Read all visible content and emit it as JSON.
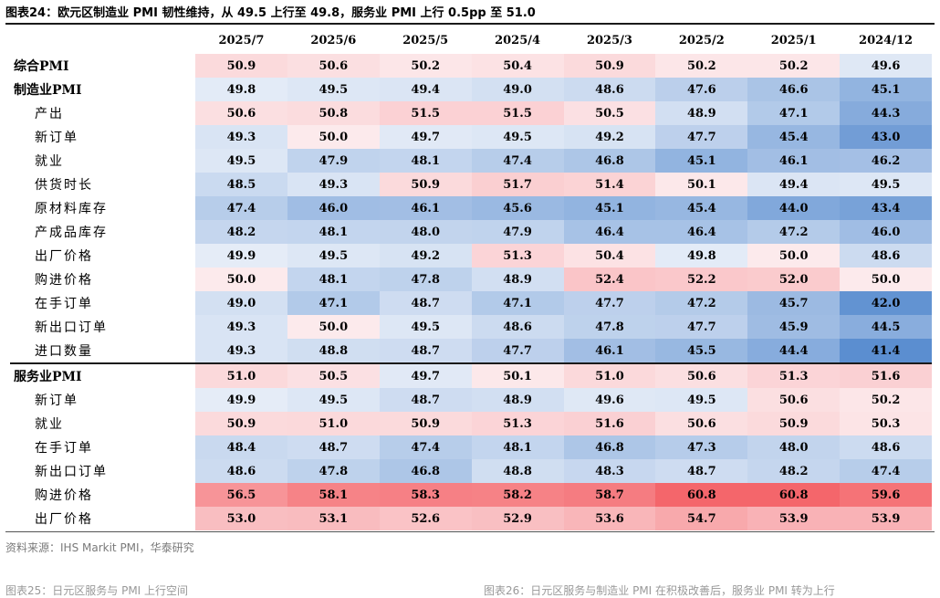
{
  "title": "图表24：欧元区制造业 PMI 韧性维持，从 49.5 上行至 49.8，服务业 PMI 上行 0.5pp 至 51.0",
  "columns": [
    "2025/7",
    "2025/6",
    "2025/5",
    "2025/4",
    "2025/3",
    "2025/2",
    "2025/1",
    "2024/12"
  ],
  "rows": [
    {
      "label": "综合PMI",
      "level": "main",
      "values": [
        "50.9",
        "50.6",
        "50.2",
        "50.4",
        "50.9",
        "50.2",
        "50.2",
        "49.6"
      ]
    },
    {
      "label": "制造业PMI",
      "level": "main",
      "values": [
        "49.8",
        "49.5",
        "49.4",
        "49.0",
        "48.6",
        "47.6",
        "46.6",
        "45.1"
      ]
    },
    {
      "label": "产出",
      "level": "sub",
      "values": [
        "50.6",
        "50.8",
        "51.5",
        "51.5",
        "50.5",
        "48.9",
        "47.1",
        "44.3"
      ]
    },
    {
      "label": "新订单",
      "level": "sub",
      "values": [
        "49.3",
        "50.0",
        "49.7",
        "49.5",
        "49.2",
        "47.7",
        "45.4",
        "43.0"
      ]
    },
    {
      "label": "就业",
      "level": "sub",
      "values": [
        "49.5",
        "47.9",
        "48.1",
        "47.4",
        "46.8",
        "45.1",
        "46.1",
        "46.2"
      ]
    },
    {
      "label": "供货时长",
      "level": "sub",
      "values": [
        "48.5",
        "49.3",
        "50.9",
        "51.7",
        "51.4",
        "50.1",
        "49.4",
        "49.5"
      ]
    },
    {
      "label": "原材料库存",
      "level": "sub",
      "values": [
        "47.4",
        "46.0",
        "46.1",
        "45.6",
        "45.1",
        "45.4",
        "44.0",
        "43.4"
      ]
    },
    {
      "label": "产成品库存",
      "level": "sub",
      "values": [
        "48.2",
        "48.1",
        "48.0",
        "47.9",
        "46.4",
        "46.4",
        "47.2",
        "46.0"
      ]
    },
    {
      "label": "出厂价格",
      "level": "sub",
      "values": [
        "49.9",
        "49.5",
        "49.2",
        "51.3",
        "50.4",
        "49.8",
        "50.0",
        "48.6"
      ]
    },
    {
      "label": "购进价格",
      "level": "sub",
      "values": [
        "50.0",
        "48.1",
        "47.8",
        "48.9",
        "52.4",
        "52.2",
        "52.0",
        "50.0"
      ]
    },
    {
      "label": "在手订单",
      "level": "sub",
      "values": [
        "49.0",
        "47.1",
        "48.7",
        "47.1",
        "47.7",
        "47.2",
        "45.7",
        "42.0"
      ]
    },
    {
      "label": "新出口订单",
      "level": "sub",
      "values": [
        "49.3",
        "50.0",
        "49.5",
        "48.6",
        "47.8",
        "47.7",
        "45.9",
        "44.5"
      ]
    },
    {
      "label": "进口数量",
      "level": "sub",
      "values": [
        "49.3",
        "48.8",
        "48.7",
        "47.7",
        "46.1",
        "45.5",
        "44.4",
        "41.4"
      ]
    },
    {
      "label": "服务业PMI",
      "level": "main",
      "sep": true,
      "values": [
        "51.0",
        "50.5",
        "49.7",
        "50.1",
        "51.0",
        "50.6",
        "51.3",
        "51.6"
      ]
    },
    {
      "label": "新订单",
      "level": "sub",
      "values": [
        "49.9",
        "49.5",
        "48.7",
        "48.9",
        "49.6",
        "49.5",
        "50.6",
        "50.2"
      ]
    },
    {
      "label": "就业",
      "level": "sub",
      "values": [
        "50.9",
        "51.0",
        "50.9",
        "51.3",
        "51.6",
        "50.6",
        "50.9",
        "50.3"
      ]
    },
    {
      "label": "在手订单",
      "level": "sub",
      "values": [
        "48.4",
        "48.7",
        "47.4",
        "48.1",
        "46.8",
        "47.3",
        "48.0",
        "48.6"
      ]
    },
    {
      "label": "新出口订单",
      "level": "sub",
      "values": [
        "48.6",
        "47.8",
        "46.8",
        "48.8",
        "48.3",
        "48.7",
        "48.2",
        "47.4"
      ]
    },
    {
      "label": "购进价格",
      "level": "sub",
      "values": [
        "56.5",
        "58.1",
        "58.3",
        "58.2",
        "58.7",
        "60.8",
        "60.8",
        "59.6"
      ]
    },
    {
      "label": "出厂价格",
      "level": "sub",
      "values": [
        "53.0",
        "53.1",
        "52.6",
        "52.9",
        "53.6",
        "54.7",
        "53.9",
        "53.9"
      ]
    }
  ],
  "heatmap_colors": {
    "low": "#5b8ed0",
    "mid": "#e8eef8",
    "high": "#f4666b",
    "threshold": 50
  },
  "source": "资料来源：IHS Markit PMI，华泰研究",
  "footer_left": "图表25：日元区服务与 PMI 上行空间",
  "footer_right": "图表26：日元区服务与制造业 PMI 在积极改善后，服务业 PMI 转为上行"
}
